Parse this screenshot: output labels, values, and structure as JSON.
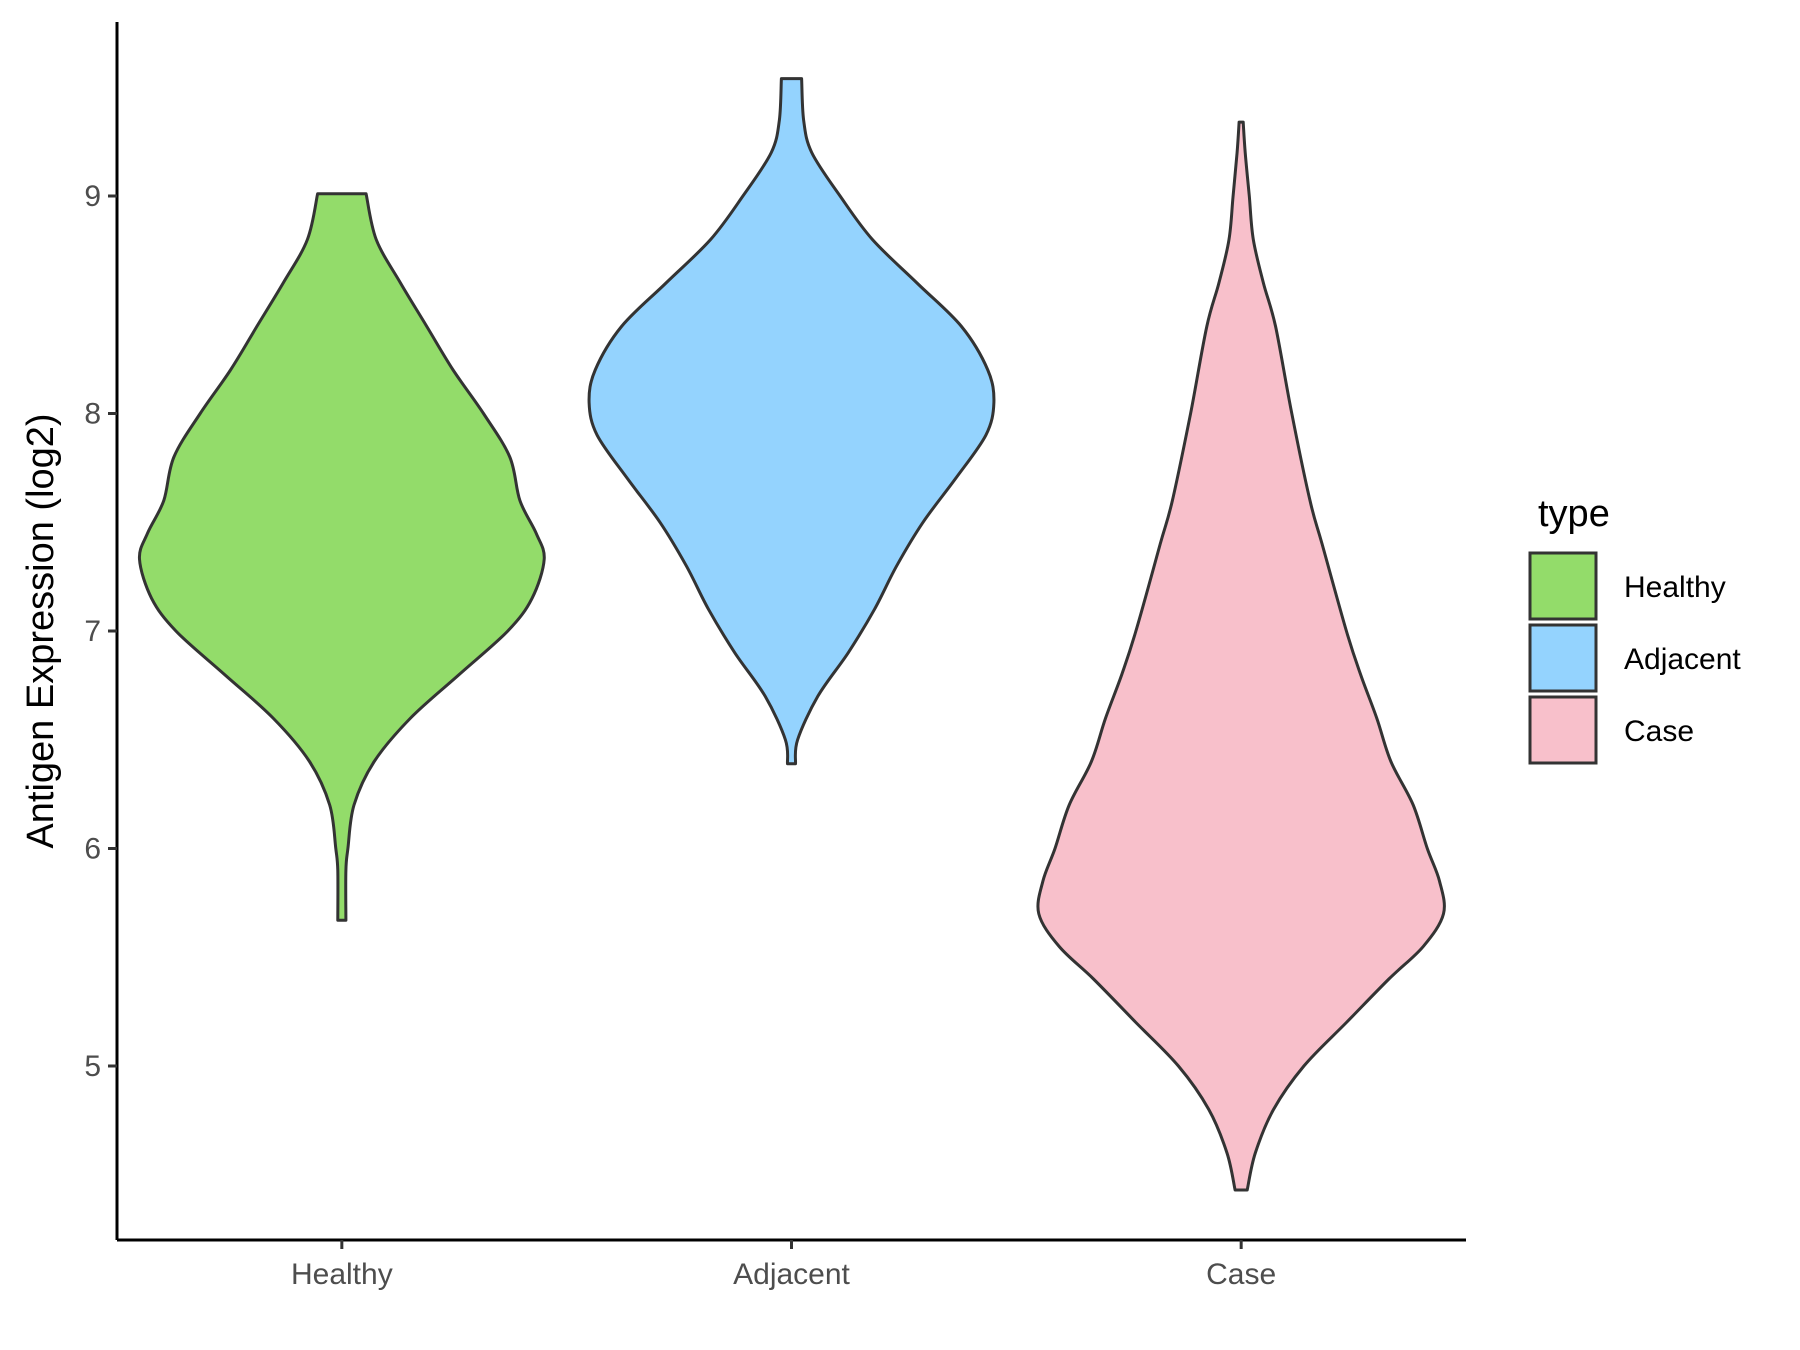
{
  "chart_data": {
    "type": "violin",
    "title": "",
    "xlabel": "",
    "ylabel": "Antigen Expression (log2)",
    "ylim": [
      4.2,
      9.8
    ],
    "yticks": [
      5,
      6,
      7,
      8,
      9
    ],
    "grid": false,
    "legend": {
      "title": "type",
      "placement": "right",
      "entries": [
        "Healthy",
        "Adjacent",
        "Case"
      ]
    },
    "categories": [
      "Healthy",
      "Adjacent",
      "Case"
    ],
    "series": [
      {
        "name": "Healthy",
        "color": "#93dc6a",
        "min": 5.67,
        "max": 9.01,
        "profile": [
          [
            5.67,
            0.02
          ],
          [
            5.9,
            0.02
          ],
          [
            6.0,
            0.03
          ],
          [
            6.2,
            0.06
          ],
          [
            6.4,
            0.16
          ],
          [
            6.6,
            0.34
          ],
          [
            6.8,
            0.58
          ],
          [
            7.0,
            0.82
          ],
          [
            7.15,
            0.94
          ],
          [
            7.33,
            1.0
          ],
          [
            7.45,
            0.96
          ],
          [
            7.6,
            0.88
          ],
          [
            7.8,
            0.83
          ],
          [
            8.0,
            0.7
          ],
          [
            8.2,
            0.55
          ],
          [
            8.4,
            0.42
          ],
          [
            8.6,
            0.29
          ],
          [
            8.8,
            0.17
          ],
          [
            9.01,
            0.12
          ]
        ]
      },
      {
        "name": "Adjacent",
        "color": "#94d3fe",
        "min": 6.39,
        "max": 9.54,
        "profile": [
          [
            6.39,
            0.02
          ],
          [
            6.5,
            0.03
          ],
          [
            6.7,
            0.13
          ],
          [
            6.9,
            0.28
          ],
          [
            7.1,
            0.41
          ],
          [
            7.3,
            0.52
          ],
          [
            7.5,
            0.65
          ],
          [
            7.7,
            0.81
          ],
          [
            7.9,
            0.96
          ],
          [
            8.05,
            1.0
          ],
          [
            8.2,
            0.97
          ],
          [
            8.4,
            0.84
          ],
          [
            8.6,
            0.62
          ],
          [
            8.8,
            0.4
          ],
          [
            9.0,
            0.24
          ],
          [
            9.2,
            0.1
          ],
          [
            9.35,
            0.06
          ],
          [
            9.54,
            0.05
          ]
        ]
      },
      {
        "name": "Case",
        "color": "#f8c0cb",
        "min": 4.43,
        "max": 9.34,
        "profile": [
          [
            4.43,
            0.03
          ],
          [
            4.6,
            0.07
          ],
          [
            4.8,
            0.16
          ],
          [
            5.0,
            0.31
          ],
          [
            5.2,
            0.52
          ],
          [
            5.4,
            0.73
          ],
          [
            5.55,
            0.9
          ],
          [
            5.7,
            1.0
          ],
          [
            5.85,
            0.98
          ],
          [
            6.0,
            0.92
          ],
          [
            6.2,
            0.85
          ],
          [
            6.4,
            0.74
          ],
          [
            6.6,
            0.67
          ],
          [
            6.8,
            0.59
          ],
          [
            7.0,
            0.52
          ],
          [
            7.4,
            0.4
          ],
          [
            7.6,
            0.34
          ],
          [
            8.0,
            0.25
          ],
          [
            8.4,
            0.17
          ],
          [
            8.6,
            0.11
          ],
          [
            8.8,
            0.06
          ],
          [
            9.0,
            0.04
          ],
          [
            9.2,
            0.02
          ],
          [
            9.34,
            0.01
          ]
        ]
      }
    ]
  }
}
